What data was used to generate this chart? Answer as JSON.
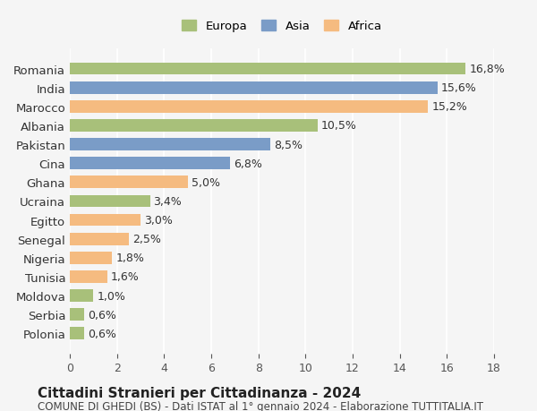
{
  "categories": [
    "Polonia",
    "Serbia",
    "Moldova",
    "Tunisia",
    "Nigeria",
    "Senegal",
    "Egitto",
    "Ucraina",
    "Ghana",
    "Cina",
    "Pakistan",
    "Albania",
    "Marocco",
    "India",
    "Romania"
  ],
  "values": [
    0.6,
    0.6,
    1.0,
    1.6,
    1.8,
    2.5,
    3.0,
    3.4,
    5.0,
    6.8,
    8.5,
    10.5,
    15.2,
    15.6,
    16.8
  ],
  "labels": [
    "0,6%",
    "0,6%",
    "1,0%",
    "1,6%",
    "1,8%",
    "2,5%",
    "3,0%",
    "3,4%",
    "5,0%",
    "6,8%",
    "8,5%",
    "10,5%",
    "15,2%",
    "15,6%",
    "16,8%"
  ],
  "colors": [
    "#a8c07a",
    "#a8c07a",
    "#a8c07a",
    "#f5bb80",
    "#f5bb80",
    "#f5bb80",
    "#f5bb80",
    "#a8c07a",
    "#f5bb80",
    "#7a9cc7",
    "#7a9cc7",
    "#a8c07a",
    "#f5bb80",
    "#7a9cc7",
    "#a8c07a"
  ],
  "legend": [
    {
      "label": "Europa",
      "color": "#a8c07a"
    },
    {
      "label": "Asia",
      "color": "#7a9cc7"
    },
    {
      "label": "Africa",
      "color": "#f5bb80"
    }
  ],
  "xlim": [
    0,
    18
  ],
  "xticks": [
    0,
    2,
    4,
    6,
    8,
    10,
    12,
    14,
    16,
    18
  ],
  "title": "Cittadini Stranieri per Cittadinanza - 2024",
  "subtitle": "COMUNE DI GHEDI (BS) - Dati ISTAT al 1° gennaio 2024 - Elaborazione TUTTITALIA.IT",
  "bg_color": "#f5f5f5",
  "bar_height": 0.65,
  "label_fontsize": 9,
  "title_fontsize": 11,
  "subtitle_fontsize": 8.5
}
